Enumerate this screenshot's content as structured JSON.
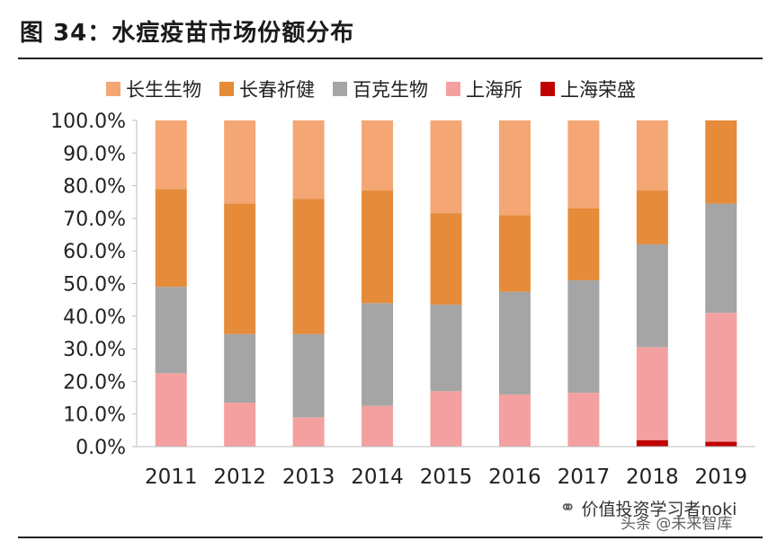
{
  "header": {
    "title": "图 34：水痘疫苗市场份额分布"
  },
  "colors": {
    "长生生物": "#f4a775",
    "长春祈健": "#e58b3a",
    "百克生物": "#a5a5a5",
    "上海所": "#f4a0a0",
    "上海荣盛": "#c00000"
  },
  "watermark": {
    "main": "价值投资学习者noki",
    "sub": "头条 @未来智库",
    "icon": "wechat-icon"
  },
  "chart_data": {
    "type": "bar",
    "stacked": true,
    "categories": [
      "2011",
      "2012",
      "2013",
      "2014",
      "2015",
      "2016",
      "2017",
      "2018",
      "2019"
    ],
    "series": [
      {
        "name": "上海荣盛",
        "values": [
          0,
          0,
          0,
          0,
          0,
          0,
          0,
          2,
          1.5
        ]
      },
      {
        "name": "上海所",
        "values": [
          22.5,
          13.5,
          9,
          12.5,
          17,
          16,
          16.5,
          28.5,
          39.5
        ]
      },
      {
        "name": "百克生物",
        "values": [
          26.5,
          21,
          25.5,
          31.5,
          26.5,
          31.5,
          34.5,
          31.5,
          33.5
        ]
      },
      {
        "name": "长春祈健",
        "values": [
          30,
          40,
          41.5,
          34.5,
          28,
          23.5,
          22,
          16.5,
          25.5
        ]
      },
      {
        "name": "长生生物",
        "values": [
          21,
          25.5,
          24,
          21.5,
          28.5,
          29,
          27,
          21.5,
          0
        ]
      }
    ],
    "legend_order": [
      "长生生物",
      "长春祈健",
      "百克生物",
      "上海所",
      "上海荣盛"
    ],
    "ylim": [
      0,
      100
    ],
    "yticks": [
      "0.0%",
      "10.0%",
      "20.0%",
      "30.0%",
      "40.0%",
      "50.0%",
      "60.0%",
      "70.0%",
      "80.0%",
      "90.0%",
      "100.0%"
    ],
    "legend_position": "top",
    "grid": false
  }
}
